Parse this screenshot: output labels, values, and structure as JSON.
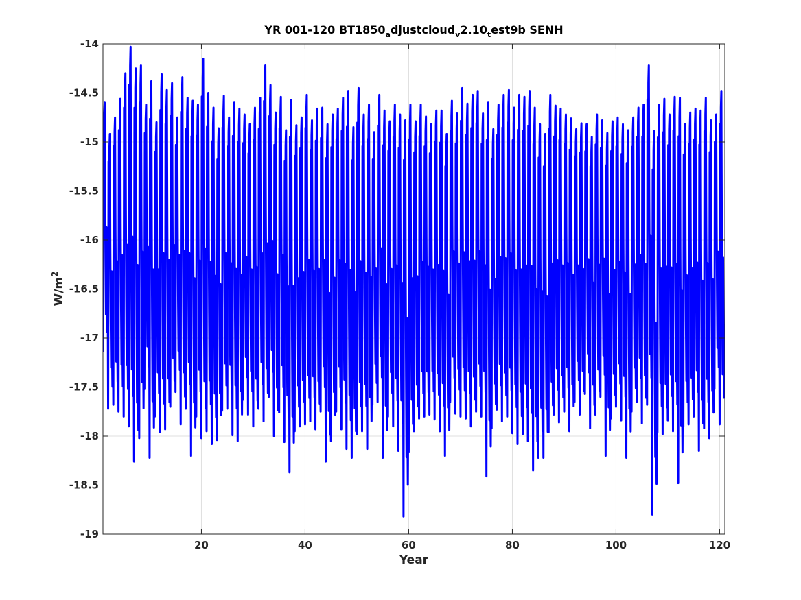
{
  "chart_data": {
    "type": "line",
    "title_parts": [
      {
        "text": "YR 001-120 BT1850",
        "sub": false
      },
      {
        "text": "a",
        "sub": true
      },
      {
        "text": "djustcloud",
        "sub": false
      },
      {
        "text": "v",
        "sub": true
      },
      {
        "text": "2.10",
        "sub": false
      },
      {
        "text": "t",
        "sub": true
      },
      {
        "text": "est9b SENH",
        "sub": false
      }
    ],
    "xlabel": "Year",
    "ylabel": "W/m",
    "ylabel_superscript": "2",
    "xlim": [
      1,
      121
    ],
    "ylim": [
      -19,
      -14
    ],
    "xticks": [
      20,
      40,
      60,
      80,
      100,
      120
    ],
    "yticks": [
      -14,
      -14.5,
      -15,
      -15.5,
      -16,
      -16.5,
      -17,
      -17.5,
      -18,
      -18.5,
      -19
    ],
    "ytick_labels": [
      "-14",
      "-14.5",
      "-15",
      "-15.5",
      "-16",
      "-16.5",
      "-17",
      "-17.5",
      "-18",
      "-18.5",
      "-19"
    ],
    "grid": true,
    "series": [
      {
        "color": "#0000ff",
        "x_start": 1,
        "x_step": 0.0833333,
        "annual_max": [
          -14.6,
          -14.92,
          -14.75,
          -14.56,
          -14.3,
          -14.03,
          -14.25,
          -14.22,
          -14.62,
          -14.38,
          -14.8,
          -14.31,
          -14.47,
          -14.4,
          -14.75,
          -14.34,
          -14.55,
          -14.58,
          -14.62,
          -14.15,
          -14.5,
          -14.65,
          -14.86,
          -14.53,
          -14.75,
          -14.6,
          -14.66,
          -14.72,
          -14.82,
          -14.65,
          -14.55,
          -14.22,
          -14.42,
          -14.7,
          -14.54,
          -14.88,
          -14.57,
          -14.83,
          -14.75,
          -14.52,
          -14.78,
          -14.66,
          -14.65,
          -14.82,
          -14.72,
          -14.66,
          -14.55,
          -14.48,
          -14.85,
          -14.45,
          -14.72,
          -14.62,
          -14.9,
          -14.52,
          -14.68,
          -14.79,
          -14.62,
          -14.72,
          -14.78,
          -14.62,
          -14.79,
          -14.62,
          -14.74,
          -14.82,
          -14.68,
          -14.68,
          -14.92,
          -14.58,
          -14.71,
          -14.45,
          -14.61,
          -14.52,
          -14.48,
          -14.71,
          -14.6,
          -14.87,
          -14.62,
          -14.52,
          -14.47,
          -14.65,
          -14.52,
          -14.54,
          -14.48,
          -14.65,
          -14.82,
          -14.92,
          -14.52,
          -14.63,
          -14.66,
          -14.72,
          -14.76,
          -14.87,
          -14.81,
          -14.82,
          -14.95,
          -14.72,
          -14.78,
          -14.91,
          -14.79,
          -14.75,
          -14.82,
          -14.88,
          -14.75,
          -14.65,
          -14.62,
          -14.22,
          -14.89,
          -14.62,
          -14.56,
          -14.72,
          -14.54,
          -14.55,
          -14.82,
          -14.7,
          -14.66,
          -14.68,
          -14.55,
          -14.78,
          -14.72,
          -14.48
        ],
        "annual_min": [
          -17.14,
          -17.72,
          -17.68,
          -17.75,
          -17.8,
          -17.9,
          -18.26,
          -18.02,
          -17.52,
          -18.22,
          -17.8,
          -17.96,
          -17.93,
          -17.7,
          -17.55,
          -17.88,
          -17.72,
          -18.2,
          -17.8,
          -18.02,
          -17.95,
          -18.08,
          -18.04,
          -17.74,
          -17.72,
          -17.99,
          -18.05,
          -17.63,
          -17.78,
          -17.9,
          -17.72,
          -17.85,
          -17.6,
          -18.0,
          -17.76,
          -18.06,
          -18.37,
          -17.95,
          -17.9,
          -17.88,
          -17.85,
          -17.93,
          -17.75,
          -18.26,
          -18.05,
          -17.75,
          -17.93,
          -18.13,
          -18.22,
          -17.98,
          -17.95,
          -18.13,
          -17.68,
          -17.65,
          -18.22,
          -17.8,
          -17.9,
          -18.15,
          -18.82,
          -18.16,
          -17.95,
          -17.82,
          -17.8,
          -17.78,
          -17.83,
          -17.95,
          -18.2,
          -17.65,
          -17.77,
          -17.8,
          -17.82,
          -17.9,
          -17.75,
          -17.8,
          -18.41,
          -17.92,
          -17.73,
          -17.85,
          -17.8,
          -17.97,
          -18.08,
          -17.98,
          -18.05,
          -18.35,
          -18.22,
          -18.22,
          -17.96,
          -17.78,
          -17.86,
          -17.75,
          -17.95,
          -17.65,
          -17.78,
          -17.57,
          -17.92,
          -17.78,
          -17.6,
          -18.2,
          -17.82,
          -17.7,
          -17.84,
          -18.22,
          -17.75,
          -17.65,
          -17.87,
          -17.68,
          -18.8,
          -17.96,
          -17.98,
          -17.84,
          -17.95,
          -18.48,
          -17.9,
          -17.88,
          -17.8,
          -18.15,
          -17.92,
          -18.02,
          -17.52,
          -17.88
        ]
      }
    ]
  }
}
